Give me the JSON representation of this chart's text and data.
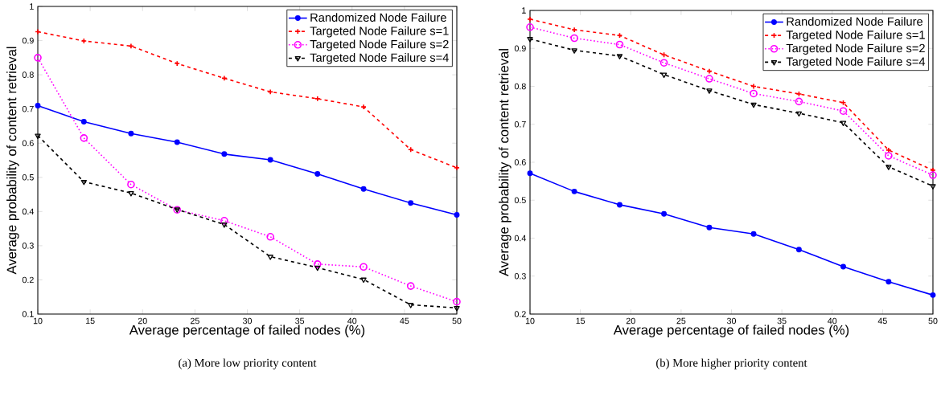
{
  "chart_data": [
    {
      "type": "line",
      "xlabel": "Average percentage of failed nodes (%)",
      "ylabel": "Average probability of content retrieval",
      "annotations": [
        "(a) More low priority content"
      ],
      "x": [
        10,
        14.4,
        18.9,
        23.3,
        27.8,
        32.2,
        36.7,
        41.1,
        45.6,
        50
      ],
      "xlim": [
        10,
        50
      ],
      "xticks": [
        10,
        15,
        20,
        25,
        30,
        35,
        40,
        45,
        50
      ],
      "ylim": [
        0.1,
        1
      ],
      "yticks": [
        0.1,
        0.2,
        0.3,
        0.4,
        0.5,
        0.6,
        0.7,
        0.8,
        0.9,
        1
      ],
      "legend": "top right",
      "grid": false,
      "series": [
        {
          "name": "Randomized Node Failure",
          "color": "#0000ff",
          "marker": "circle",
          "line_style": "solid",
          "values": [
            0.71,
            0.663,
            0.628,
            0.603,
            0.568,
            0.551,
            0.51,
            0.466,
            0.425,
            0.39
          ]
        },
        {
          "name": "Targeted Node Failure s=1",
          "color": "#ff0000",
          "marker": "cross",
          "line_style": "dashed",
          "values": [
            0.926,
            0.899,
            0.884,
            0.833,
            0.79,
            0.75,
            0.73,
            0.706,
            0.581,
            0.528
          ]
        },
        {
          "name": "Targeted Node Failure s=2",
          "color": "#ff00ff",
          "marker": "circle",
          "line_style": "dotted",
          "values": [
            0.85,
            0.615,
            0.479,
            0.405,
            0.373,
            0.326,
            0.246,
            0.238,
            0.182,
            0.136
          ]
        },
        {
          "name": "Targeted Node Failure s=4",
          "color": "#000000",
          "marker": "triangle",
          "line_style": "dashed",
          "values": [
            0.622,
            0.487,
            0.454,
            0.406,
            0.362,
            0.268,
            0.236,
            0.201,
            0.127,
            0.118
          ]
        }
      ]
    },
    {
      "type": "line",
      "xlabel": "Average percentage of failed nodes (%)",
      "ylabel": "Average probability of content retrieval",
      "annotations": [
        "(b) More higher priority content"
      ],
      "x": [
        10,
        14.4,
        18.9,
        23.3,
        27.8,
        32.2,
        36.7,
        41.1,
        45.6,
        50
      ],
      "xlim": [
        10,
        50
      ],
      "xticks": [
        10,
        15,
        20,
        25,
        30,
        35,
        40,
        45,
        50
      ],
      "ylim": [
        0.2,
        1
      ],
      "yticks": [
        0.2,
        0.3,
        0.4,
        0.5,
        0.6,
        0.7,
        0.8,
        0.9,
        1
      ],
      "legend": "top right",
      "grid": false,
      "series": [
        {
          "name": "Randomized Node Failure",
          "color": "#0000ff",
          "marker": "circle",
          "line_style": "solid",
          "values": [
            0.571,
            0.523,
            0.488,
            0.464,
            0.428,
            0.411,
            0.37,
            0.325,
            0.285,
            0.25
          ]
        },
        {
          "name": "Targeted Node Failure s=1",
          "color": "#ff0000",
          "marker": "cross",
          "line_style": "dashed",
          "values": [
            0.977,
            0.949,
            0.934,
            0.883,
            0.84,
            0.8,
            0.78,
            0.757,
            0.632,
            0.579
          ]
        },
        {
          "name": "Targeted Node Failure s=2",
          "color": "#ff00ff",
          "marker": "circle",
          "line_style": "dotted",
          "values": [
            0.956,
            0.927,
            0.91,
            0.862,
            0.82,
            0.781,
            0.76,
            0.735,
            0.617,
            0.566
          ]
        },
        {
          "name": "Targeted Node Failure s=4",
          "color": "#000000",
          "marker": "triangle",
          "line_style": "dashed",
          "values": [
            0.925,
            0.895,
            0.88,
            0.831,
            0.789,
            0.752,
            0.729,
            0.704,
            0.588,
            0.537
          ]
        }
      ]
    }
  ]
}
